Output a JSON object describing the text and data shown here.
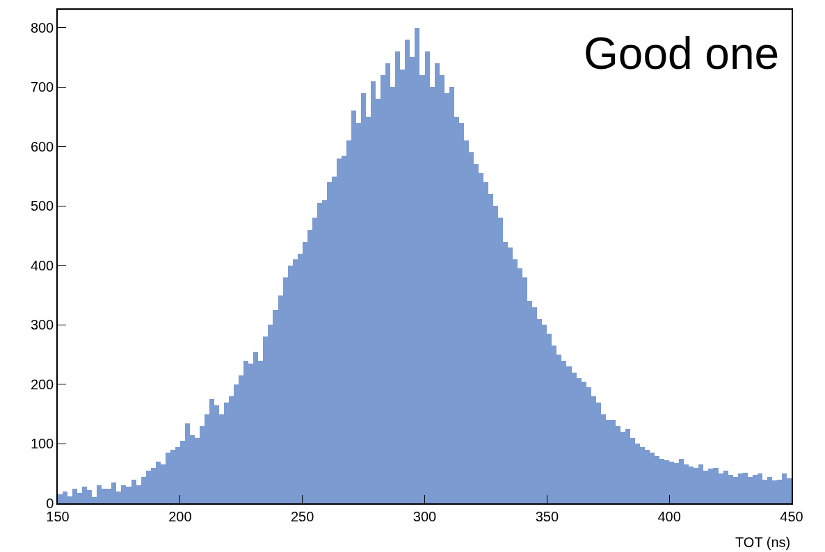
{
  "chart_data": {
    "type": "histogram",
    "xlabel": "TOT (ns)",
    "annotations": [
      "Good one"
    ],
    "bins": [
      150,
      152,
      154,
      156,
      158,
      160,
      162,
      164,
      166,
      168,
      170,
      172,
      174,
      176,
      178,
      180,
      182,
      184,
      186,
      188,
      190,
      192,
      194,
      196,
      198,
      200,
      202,
      204,
      206,
      208,
      210,
      212,
      214,
      216,
      218,
      220,
      222,
      224,
      226,
      228,
      230,
      232,
      234,
      236,
      238,
      240,
      242,
      244,
      246,
      248,
      250,
      252,
      254,
      256,
      258,
      260,
      262,
      264,
      266,
      268,
      270,
      272,
      274,
      276,
      278,
      280,
      282,
      284,
      286,
      288,
      290,
      292,
      294,
      296,
      298,
      300,
      302,
      304,
      306,
      308,
      310,
      312,
      314,
      316,
      318,
      320,
      322,
      324,
      326,
      328,
      330,
      332,
      334,
      336,
      338,
      340,
      342,
      344,
      346,
      348,
      350,
      352,
      354,
      356,
      358,
      360,
      362,
      364,
      366,
      368,
      370,
      372,
      374,
      376,
      378,
      380,
      382,
      384,
      386,
      388,
      390,
      392,
      394,
      396,
      398,
      400,
      402,
      404,
      406,
      408,
      410,
      412,
      414,
      416,
      418,
      420,
      422,
      424,
      426,
      428,
      430,
      432,
      434,
      436,
      438,
      440,
      442,
      444,
      446,
      448,
      450
    ],
    "values": [
      15,
      20,
      12,
      25,
      18,
      28,
      22,
      10,
      30,
      25,
      25,
      35,
      20,
      30,
      28,
      40,
      30,
      45,
      55,
      60,
      70,
      65,
      85,
      90,
      95,
      105,
      135,
      115,
      110,
      130,
      150,
      175,
      165,
      150,
      170,
      180,
      200,
      215,
      240,
      235,
      255,
      240,
      280,
      300,
      325,
      350,
      380,
      400,
      410,
      420,
      440,
      460,
      480,
      505,
      510,
      540,
      550,
      580,
      585,
      610,
      660,
      640,
      690,
      650,
      710,
      680,
      720,
      740,
      700,
      760,
      730,
      780,
      750,
      800,
      720,
      760,
      700,
      740,
      720,
      690,
      700,
      650,
      640,
      610,
      590,
      570,
      555,
      540,
      520,
      500,
      480,
      440,
      430,
      410,
      395,
      380,
      340,
      330,
      310,
      300,
      285,
      265,
      250,
      240,
      230,
      220,
      210,
      205,
      195,
      180,
      170,
      150,
      140,
      140,
      130,
      120,
      125,
      110,
      100,
      95,
      90,
      85,
      80,
      75,
      72,
      70,
      68,
      75,
      65,
      62,
      60,
      65,
      55,
      58,
      60,
      50,
      55,
      48,
      45,
      50,
      52,
      45,
      48,
      50,
      40,
      45,
      38,
      40,
      50,
      42
    ],
    "color": "#7b9bd1",
    "xlim": [
      150,
      450
    ],
    "xticks": [
      150,
      200,
      250,
      300,
      350,
      400,
      450
    ],
    "ylim": [
      0,
      830
    ],
    "yticks": [
      0,
      100,
      200,
      300,
      400,
      500,
      600,
      700,
      800
    ]
  }
}
